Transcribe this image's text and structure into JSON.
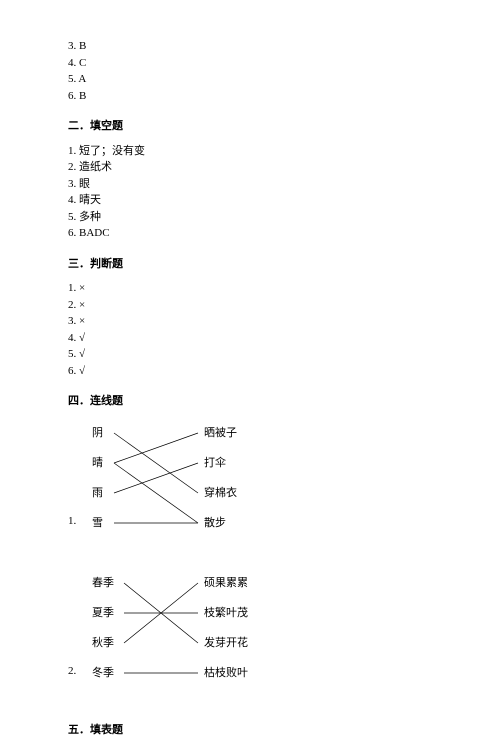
{
  "top_answers": [
    {
      "num": "3.",
      "val": "B"
    },
    {
      "num": "4.",
      "val": "C"
    },
    {
      "num": "5.",
      "val": "A"
    },
    {
      "num": "6.",
      "val": "B"
    }
  ],
  "sections": {
    "s2": {
      "heading": "二．填空题",
      "items": [
        "1. 短了；没有变",
        "2. 造纸术",
        "3. 眼",
        "4. 晴天",
        "5. 多种",
        "6. BADC"
      ]
    },
    "s3": {
      "heading": "三．判断题",
      "items": [
        "1. ×",
        "2. ×",
        "3. ×",
        "4. √",
        "5. √",
        "6. √"
      ]
    },
    "s4": {
      "heading": "四．连线题"
    },
    "s5": {
      "heading": "五．填表题"
    }
  },
  "match1": {
    "qnum": "1.",
    "left": [
      "阴",
      "晴",
      "雨",
      "雪"
    ],
    "right": [
      "晒被子",
      "打伞",
      "穿棉衣",
      "散步"
    ],
    "layout": {
      "leftX": 24,
      "rightX": 136,
      "startY": 15,
      "stepY": 30,
      "leftTextW": 16,
      "lineLeftX": 46,
      "lineRightX": 130
    },
    "lines": [
      {
        "from": 0,
        "to": 2
      },
      {
        "from": 1,
        "to": 0
      },
      {
        "from": 2,
        "to": 1
      },
      {
        "from": 3,
        "to": 3
      },
      {
        "from": 1,
        "to": 3
      }
    ],
    "line_color": "#000000",
    "line_width": 0.7
  },
  "match2": {
    "qnum": "2.",
    "left": [
      "春季",
      "夏季",
      "秋季",
      "冬季"
    ],
    "right": [
      "硕果累累",
      "枝繁叶茂",
      "发芽开花",
      "枯枝败叶"
    ],
    "layout": {
      "leftX": 24,
      "rightX": 136,
      "startY": 15,
      "stepY": 30,
      "leftTextW": 28,
      "lineLeftX": 56,
      "lineRightX": 130
    },
    "lines": [
      {
        "from": 0,
        "to": 2
      },
      {
        "from": 1,
        "to": 1
      },
      {
        "from": 2,
        "to": 0
      },
      {
        "from": 3,
        "to": 3
      }
    ],
    "line_color": "#000000",
    "line_width": 0.7
  }
}
